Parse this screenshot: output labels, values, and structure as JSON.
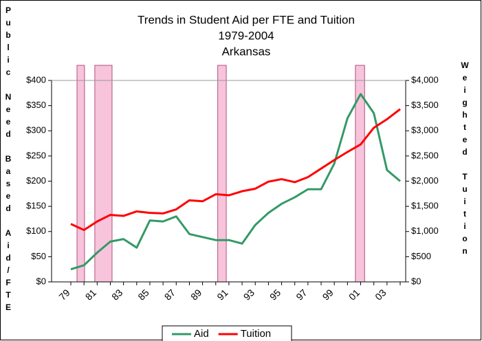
{
  "chart_data": {
    "type": "line",
    "title": [
      "Trends in Student Aid per FTE and Tuition",
      "1979-2004",
      "Arkansas"
    ],
    "y_label": "Public Need Based Aid/FTE",
    "y2_label": "Weighted Tuition",
    "categories": [
      "79",
      null,
      "81",
      null,
      "83",
      null,
      "85",
      null,
      "87",
      null,
      "89",
      null,
      "91",
      null,
      "93",
      null,
      "95",
      null,
      "97",
      null,
      "99",
      null,
      "01",
      null,
      "03",
      null
    ],
    "series": [
      {
        "name": "Aid",
        "color": "#339966",
        "values": [
          25,
          33,
          58,
          80,
          85,
          68,
          122,
          120,
          130,
          95,
          89,
          83,
          83,
          76,
          113,
          137,
          155,
          168,
          184,
          184,
          235,
          325,
          373,
          335,
          222,
          200
        ]
      },
      {
        "name": "Tuition",
        "color": "#ff0000",
        "axis": "y2",
        "values": [
          1150,
          1030,
          1200,
          1330,
          1310,
          1400,
          1370,
          1360,
          1440,
          1620,
          1600,
          1740,
          1720,
          1800,
          1850,
          1990,
          2040,
          1980,
          2080,
          2250,
          2420,
          2580,
          2730,
          3060,
          3230,
          3430
        ]
      }
    ],
    "highlight_ranges": [
      [
        0.47,
        1.04
      ],
      [
        1.82,
        3.13
      ],
      [
        11.15,
        11.8
      ],
      [
        21.6,
        22.3
      ]
    ],
    "highlight_color": "#f7c4dc",
    "ylim": [
      0,
      400
    ],
    "yticks": [
      {
        "value": 0,
        "label": "$0"
      },
      {
        "value": 50,
        "label": "$50"
      },
      {
        "value": 100,
        "label": "$100"
      },
      {
        "value": 150,
        "label": "$150"
      },
      {
        "value": 200,
        "label": "$200"
      },
      {
        "value": 250,
        "label": "$250"
      },
      {
        "value": 300,
        "label": "$300"
      },
      {
        "value": 350,
        "label": "$350"
      },
      {
        "value": 400,
        "label": "$400"
      }
    ],
    "y2lim": [
      0,
      4000
    ],
    "y2ticks": [
      {
        "value": 0,
        "label": "$0"
      },
      {
        "value": 500,
        "label": "$500"
      },
      {
        "value": 1000,
        "label": "$1,000"
      },
      {
        "value": 1500,
        "label": "$1,500"
      },
      {
        "value": 2000,
        "label": "$2,000"
      },
      {
        "value": 2500,
        "label": "$2,500"
      },
      {
        "value": 3000,
        "label": "$3,000"
      },
      {
        "value": 3500,
        "label": "$3,500"
      },
      {
        "value": 4000,
        "label": "$4,000"
      }
    ],
    "legend": "bottom"
  }
}
